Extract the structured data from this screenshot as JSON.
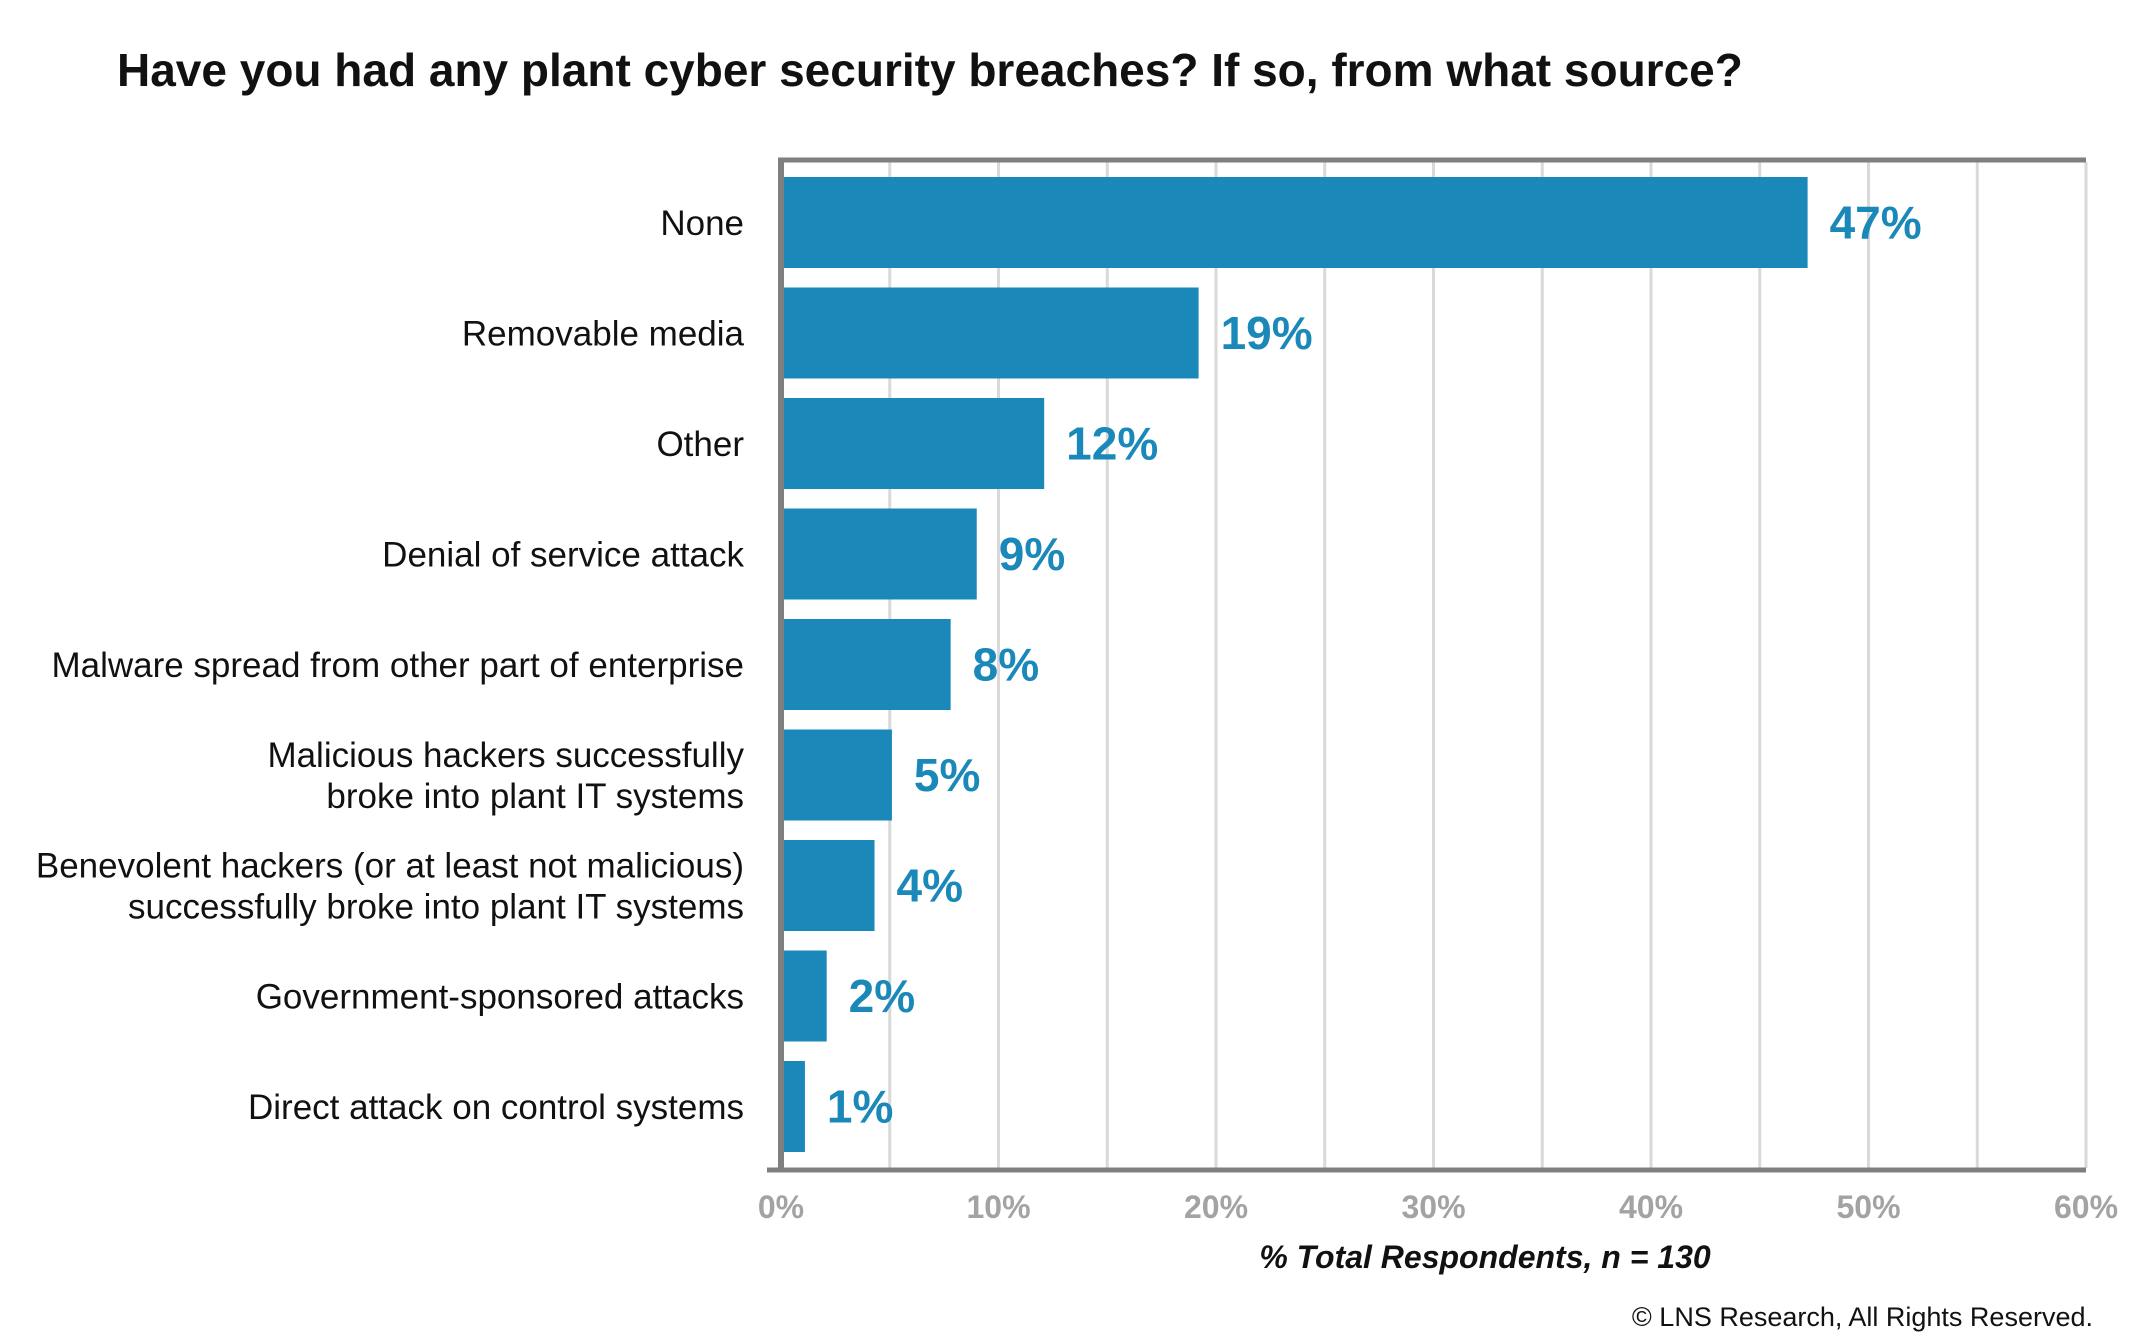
{
  "chart_data": {
    "type": "bar",
    "orientation": "horizontal",
    "title": "Have you had any plant cyber security breaches? If so, from what source?",
    "categories": [
      [
        "None"
      ],
      [
        "Removable media"
      ],
      [
        "Other"
      ],
      [
        "Denial of service attack"
      ],
      [
        "Malware spread from other part of enterprise"
      ],
      [
        "Malicious hackers successfully",
        "broke into plant IT systems"
      ],
      [
        "Benevolent hackers (or at least not malicious)",
        "successfully broke into plant IT systems"
      ],
      [
        "Government-sponsored attacks"
      ],
      [
        "Direct attack on control systems"
      ]
    ],
    "values": [
      47.2,
      19.2,
      12.1,
      9.0,
      7.8,
      5.1,
      4.3,
      2.1,
      1.1
    ],
    "value_labels": [
      "47%",
      "19%",
      "12%",
      "9%",
      "8%",
      "5%",
      "4%",
      "2%",
      "1%"
    ],
    "xlim": [
      0,
      60
    ],
    "x_ticks": [
      0,
      10,
      20,
      30,
      40,
      50,
      60
    ],
    "x_tick_labels": [
      "0%",
      "10%",
      "20%",
      "30%",
      "40%",
      "50%",
      "60%"
    ],
    "xlabel": "% Total Respondents, n = 130",
    "ylabel": "",
    "grid": true,
    "colors": {
      "bar": "#1a88b8",
      "value_label": "#1a88b8",
      "tick_label": "#a3a3a3",
      "axis": "#7f7f7f",
      "grid": "#d9d9d9"
    }
  },
  "footer": {
    "copyright": "© LNS Research, All Rights Reserved."
  }
}
